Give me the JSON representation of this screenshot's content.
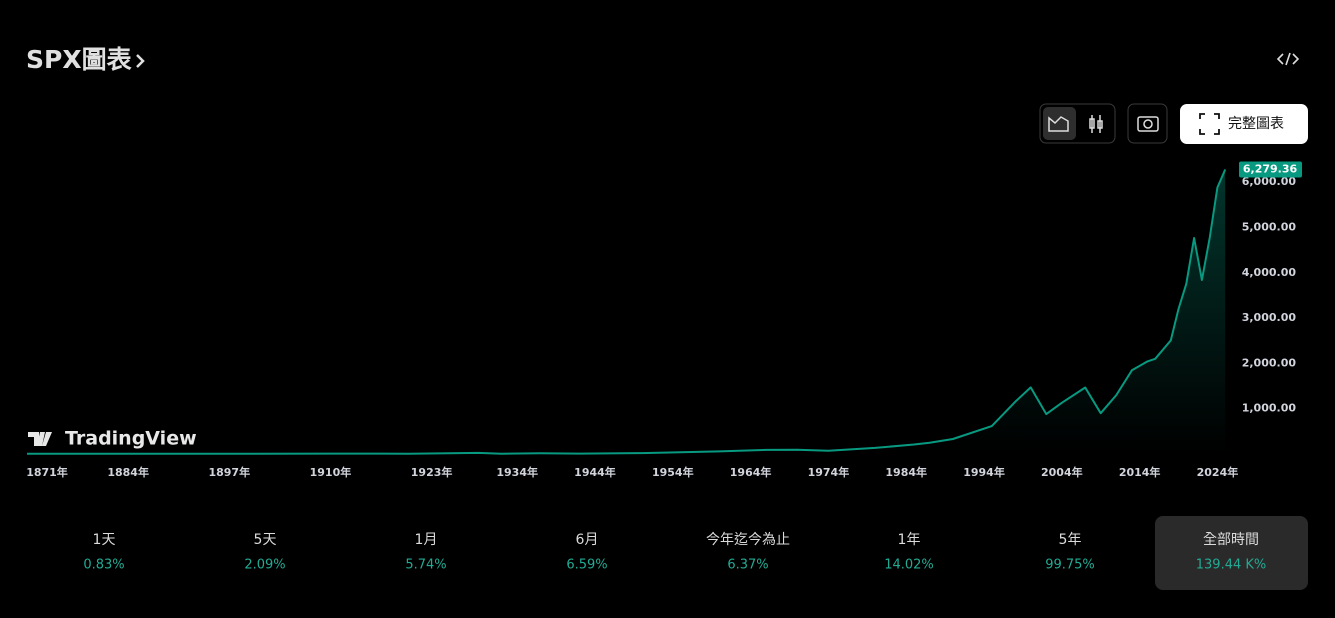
{
  "header": {
    "title": "SPX圖表",
    "full_chart_button": "完整圖表"
  },
  "watermark": "TradingView",
  "chart_data": {
    "type": "line",
    "x": [
      1871,
      1880,
      1890,
      1900,
      1910,
      1920,
      1929,
      1932,
      1937,
      1942,
      1950,
      1955,
      1960,
      1966,
      1970,
      1974,
      1980,
      1985,
      1987,
      1990,
      1995,
      1998,
      2000,
      2002,
      2004,
      2007,
      2009,
      2011,
      2013,
      2015,
      2016,
      2018,
      2019,
      2020,
      2021,
      2022,
      2023,
      2024,
      2025
    ],
    "series": [
      {
        "name": "SPX",
        "color": "#089981",
        "values": [
          4.4,
          5.5,
          5.8,
          6.2,
          9,
          7,
          24,
          7,
          15,
          9,
          20,
          40,
          58,
          90,
          92,
          70,
          135,
          210,
          250,
          330,
          615,
          1150,
          1469,
          880,
          1130,
          1468,
          900,
          1300,
          1848,
          2044,
          2100,
          2507,
          3200,
          3756,
          4766,
          3840,
          4770,
          5881,
          6279.36
        ],
        "value_labels": [
          null,
          null,
          null,
          null,
          null,
          null,
          null,
          null,
          null,
          null,
          null,
          null,
          null,
          null,
          null,
          null,
          null,
          null,
          null,
          null,
          null,
          null,
          null,
          null,
          null,
          null,
          null,
          null,
          null,
          null,
          null,
          null,
          null,
          null,
          null,
          null,
          null,
          null,
          "6,279.36"
        ]
      }
    ],
    "xlim": [
      1871,
      2026
    ],
    "xticks": [
      {
        "value": 1871,
        "label": "1871年"
      },
      {
        "value": 1884,
        "label": "1884年"
      },
      {
        "value": 1897,
        "label": "1897年"
      },
      {
        "value": 1910,
        "label": "1910年"
      },
      {
        "value": 1923,
        "label": "1923年"
      },
      {
        "value": 1934,
        "label": "1934年"
      },
      {
        "value": 1944,
        "label": "1944年"
      },
      {
        "value": 1954,
        "label": "1954年"
      },
      {
        "value": 1964,
        "label": "1964年"
      },
      {
        "value": 1974,
        "label": "1974年"
      },
      {
        "value": 1984,
        "label": "1984年"
      },
      {
        "value": 1994,
        "label": "1994年"
      },
      {
        "value": 2004,
        "label": "2004年"
      },
      {
        "value": 2014,
        "label": "2014年"
      },
      {
        "value": 2024,
        "label": "2024年"
      }
    ],
    "ylim": [
      0,
      6400
    ],
    "yticks": [
      {
        "value": 1000,
        "label": "1,000.00"
      },
      {
        "value": 2000,
        "label": "2,000.00"
      },
      {
        "value": 3000,
        "label": "3,000.00"
      },
      {
        "value": 4000,
        "label": "4,000.00"
      },
      {
        "value": 5000,
        "label": "5,000.00"
      },
      {
        "value": 6000,
        "label": "6,000.00"
      }
    ],
    "grid": false
  },
  "periods": [
    {
      "label": "1天",
      "change": "0.83%"
    },
    {
      "label": "5天",
      "change": "2.09%"
    },
    {
      "label": "1月",
      "change": "5.74%"
    },
    {
      "label": "6月",
      "change": "6.59%"
    },
    {
      "label": "今年迄今為止",
      "change": "6.37%"
    },
    {
      "label": "1年",
      "change": "14.02%"
    },
    {
      "label": "5年",
      "change": "99.75%"
    },
    {
      "label": "全部時間",
      "change": "139.44 K%"
    }
  ]
}
